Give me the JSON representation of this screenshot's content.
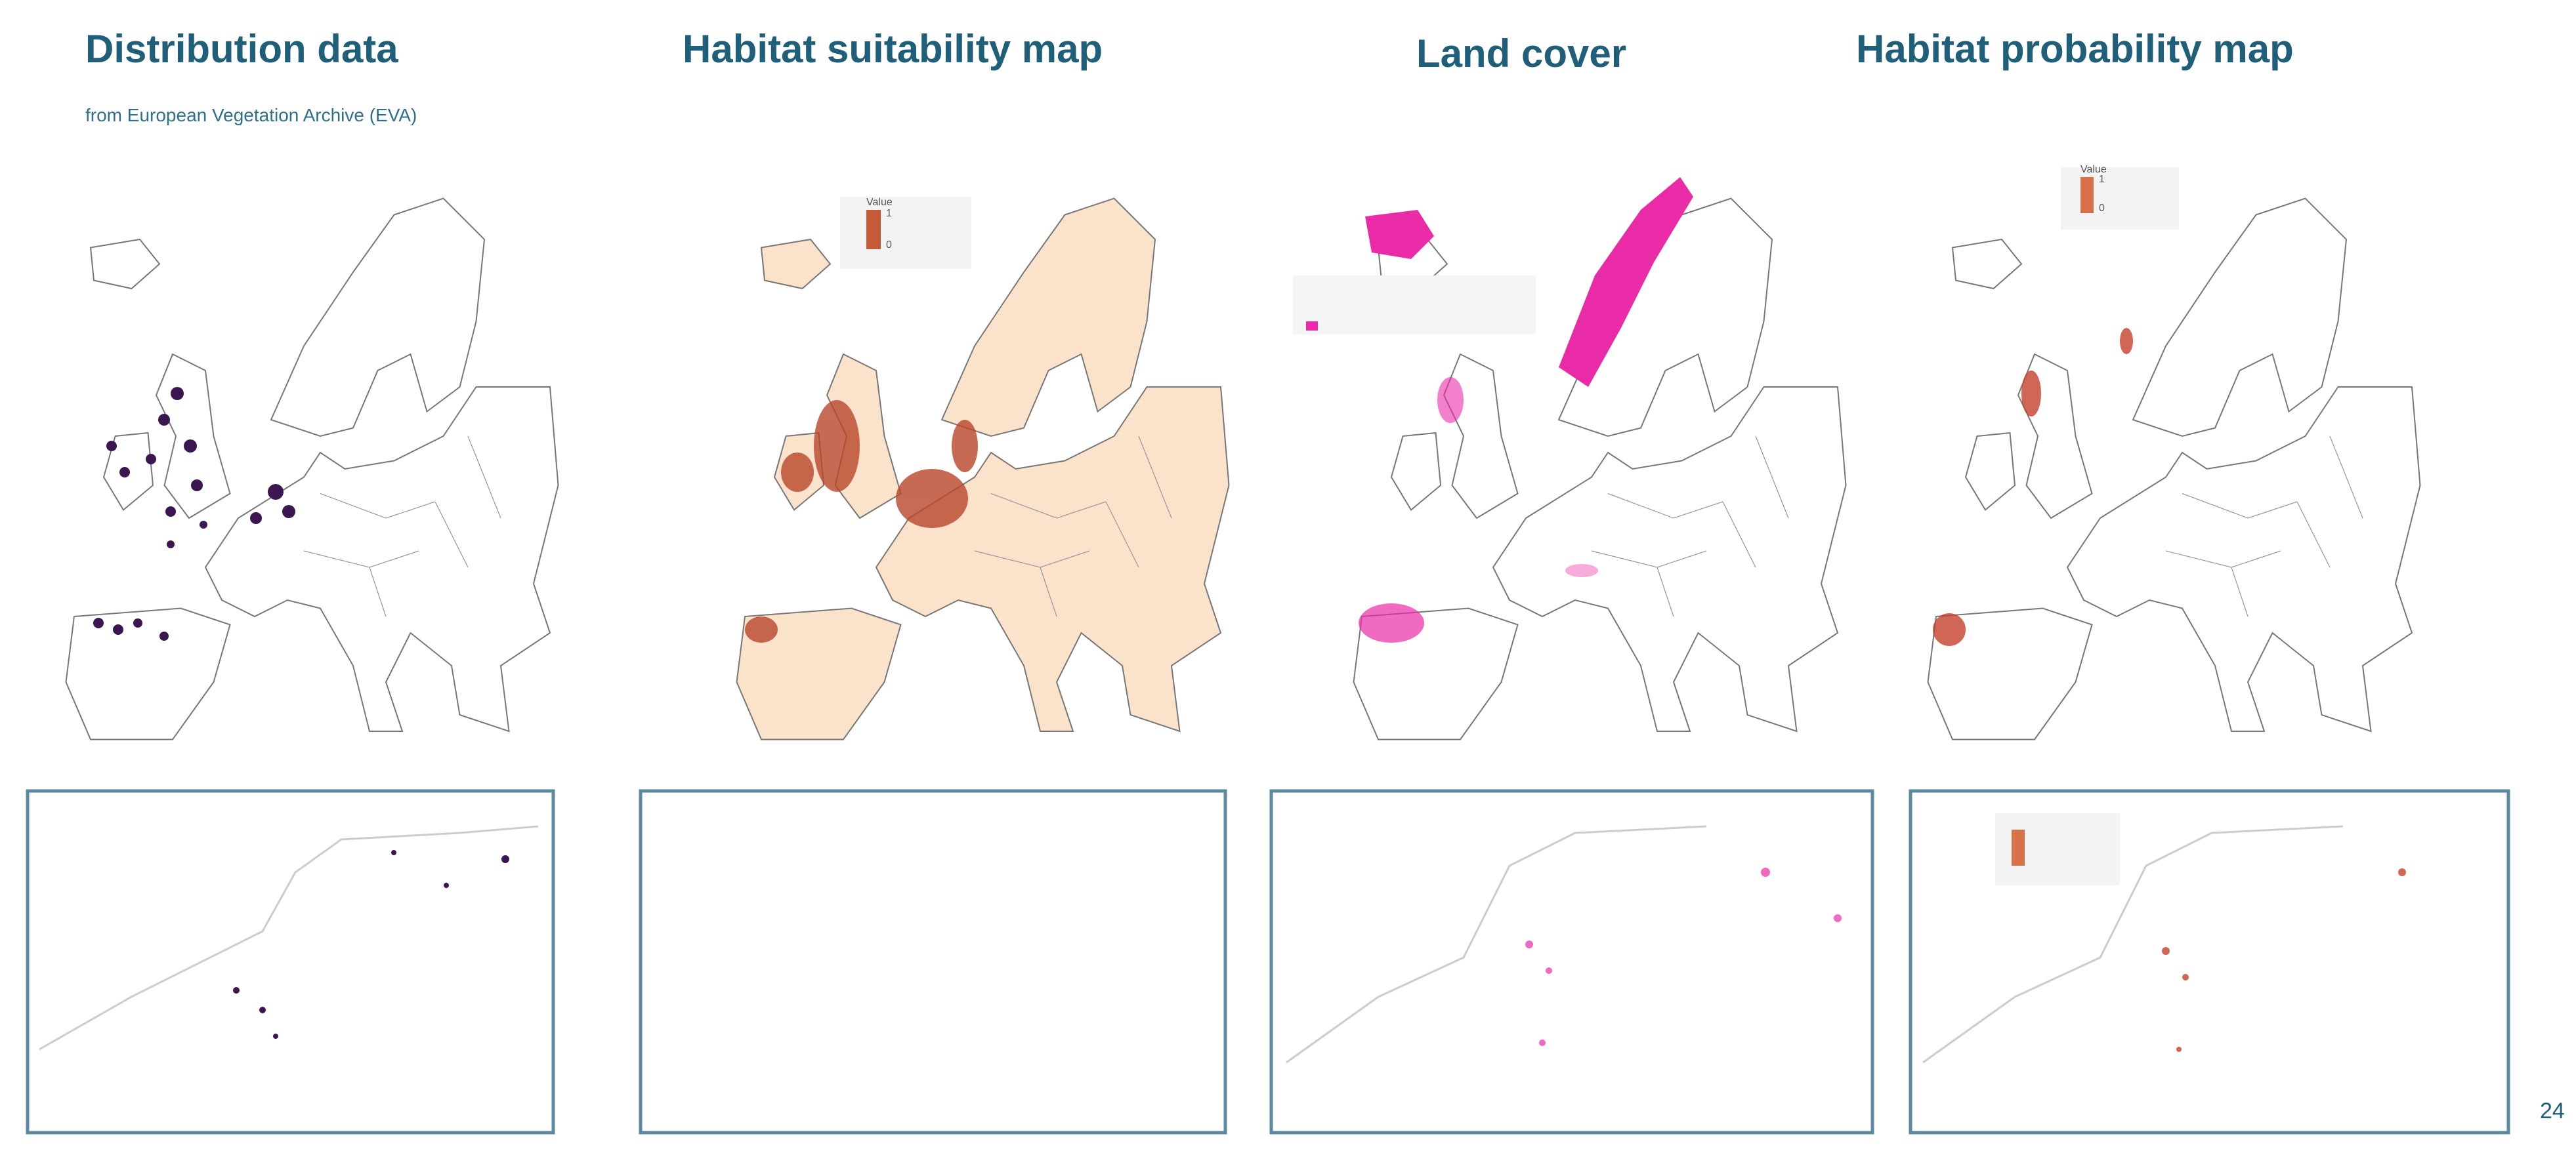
{
  "panels": [
    {
      "title": "Distribution data",
      "subtitle": "from European Vegetation Archive (EVA)"
    },
    {
      "title": "Habitat suitability map",
      "legend": {
        "title": "Value",
        "max": 1,
        "min": 0
      }
    },
    {
      "title": "Land cover"
    },
    {
      "title": "Habitat probability map",
      "legend": {
        "title": "Value",
        "max": 1,
        "min": 0
      }
    }
  ],
  "page_number": "24"
}
